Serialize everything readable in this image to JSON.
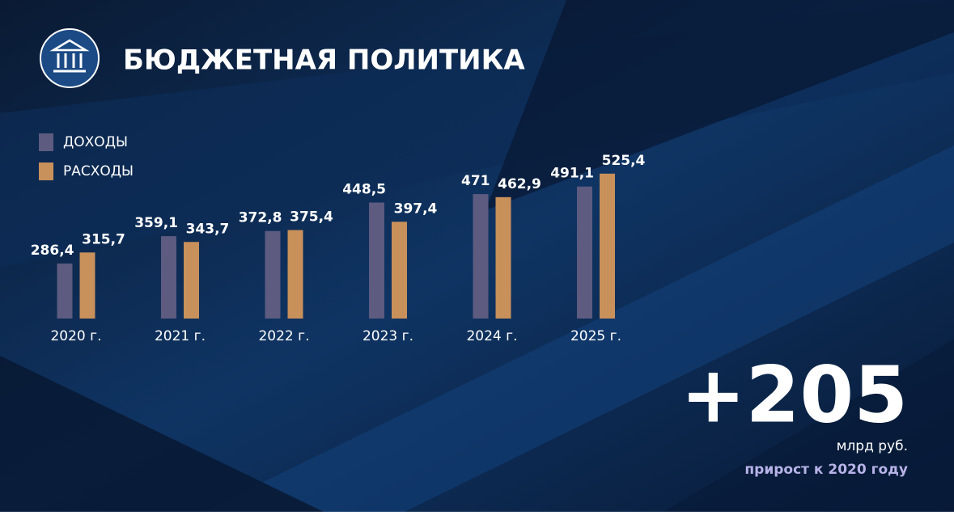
{
  "chart_data": {
    "type": "bar",
    "title": "БЮДЖЕТНАЯ ПОЛИТИКА",
    "categories": [
      "2020 г.",
      "2021 г.",
      "2022 г.",
      "2023 г.",
      "2024 г.",
      "2025 г."
    ],
    "series": [
      {
        "name": "ДОХОДЫ",
        "color": "#5d5b80",
        "values": [
          286.4,
          359.1,
          372.8,
          448.5,
          471,
          491.1
        ],
        "value_labels": [
          "286,4",
          "359,1",
          "372,8",
          "448,5",
          "471",
          "491,1"
        ]
      },
      {
        "name": "РАСХОДЫ",
        "color": "#c8905b",
        "values": [
          315.7,
          343.7,
          375.4,
          397.4,
          462.9,
          525.4
        ],
        "value_labels": [
          "315,7",
          "343,7",
          "375,4",
          "397,4",
          "462,9",
          "525,4"
        ]
      }
    ],
    "ylim": [
      140,
      540
    ],
    "legend": "top-left",
    "annotations": [
      "+205",
      "млрд руб.",
      "прирост к 2020 году"
    ]
  }
}
